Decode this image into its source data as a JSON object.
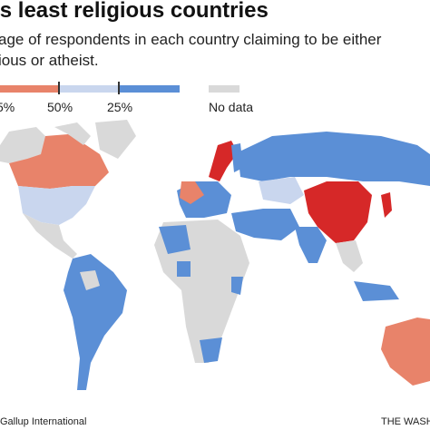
{
  "header": {
    "title": "’s least religious countries",
    "subtitle": [
      "age of respondents in each country claiming to be either",
      "ious or atheist."
    ]
  },
  "legend": {
    "labels": [
      "5%",
      "50%",
      "25%",
      "No data"
    ]
  },
  "footer": {
    "source": "Gallup International",
    "credit": "THE WASHI"
  }
}
